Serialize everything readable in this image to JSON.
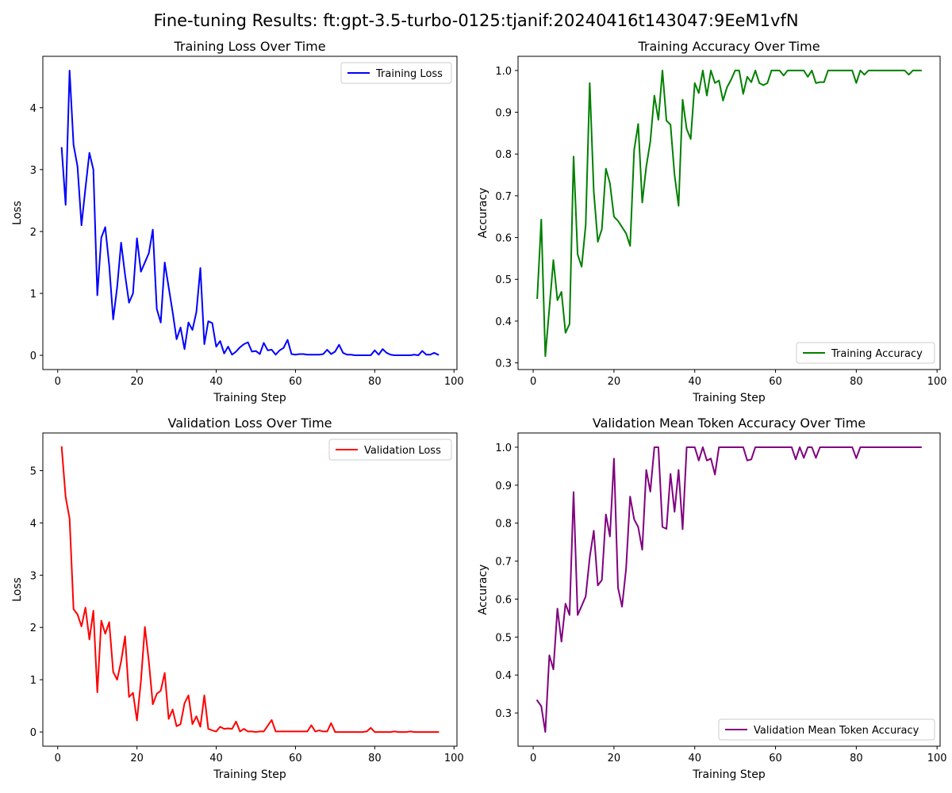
{
  "figure": {
    "title": "Fine-tuning Results: ft:gpt-3.5-turbo-0125:tjanif:20240416t143047:9EeM1vfN"
  },
  "chart_data": [
    {
      "type": "line",
      "title": "Training Loss Over Time",
      "xlabel": "Training Step",
      "ylabel": "Loss",
      "xlim": [
        -3.75,
        100.75
      ],
      "ylim": [
        -0.23,
        4.83
      ],
      "xticks": [
        0,
        20,
        40,
        60,
        80,
        100
      ],
      "yticks": [
        0,
        1,
        2,
        3,
        4
      ],
      "grid": false,
      "legend_position": "top-right",
      "series": [
        {
          "name": "Training Loss",
          "color": "#0000ff",
          "x": [
            1,
            2,
            3,
            4,
            5,
            6,
            7,
            8,
            9,
            10,
            11,
            12,
            13,
            14,
            15,
            16,
            17,
            18,
            19,
            20,
            21,
            22,
            23,
            24,
            25,
            26,
            27,
            28,
            29,
            30,
            31,
            32,
            33,
            34,
            35,
            36,
            37,
            38,
            39,
            40,
            41,
            42,
            43,
            44,
            45,
            46,
            47,
            48,
            49,
            50,
            51,
            52,
            53,
            54,
            55,
            56,
            57,
            58,
            59,
            60,
            61,
            62,
            63,
            64,
            65,
            66,
            67,
            68,
            69,
            70,
            71,
            72,
            73,
            74,
            75,
            76,
            77,
            78,
            79,
            80,
            81,
            82,
            83,
            84,
            85,
            86,
            87,
            88,
            89,
            90,
            91,
            92,
            93,
            94,
            95,
            96
          ],
          "values": [
            3.35,
            2.43,
            4.6,
            3.4,
            3.05,
            2.1,
            2.7,
            3.27,
            3.0,
            0.97,
            1.9,
            2.07,
            1.45,
            0.58,
            1.1,
            1.82,
            1.3,
            0.85,
            1.0,
            1.89,
            1.35,
            1.5,
            1.65,
            2.03,
            0.75,
            0.53,
            1.5,
            1.1,
            0.7,
            0.26,
            0.45,
            0.1,
            0.53,
            0.41,
            0.7,
            1.41,
            0.18,
            0.55,
            0.52,
            0.14,
            0.23,
            0.03,
            0.14,
            0.01,
            0.06,
            0.13,
            0.18,
            0.21,
            0.06,
            0.07,
            0.02,
            0.2,
            0.08,
            0.09,
            0.01,
            0.08,
            0.12,
            0.25,
            0.02,
            0.01,
            0.02,
            0.02,
            0.01,
            0.01,
            0.01,
            0.01,
            0.02,
            0.09,
            0.02,
            0.06,
            0.17,
            0.04,
            0.01,
            0.01,
            0.0,
            0.0,
            0.0,
            0.0,
            0.0,
            0.08,
            0.01,
            0.1,
            0.04,
            0.01,
            0.0,
            0.0,
            0.0,
            0.0,
            0.0,
            0.01,
            0.0,
            0.07,
            0.01,
            0.01,
            0.04,
            0.01
          ]
        }
      ]
    },
    {
      "type": "line",
      "title": "Training Accuracy Over Time",
      "xlabel": "Training Step",
      "ylabel": "Accuracy",
      "xlim": [
        -3.75,
        100.75
      ],
      "ylim": [
        0.284,
        1.034
      ],
      "xticks": [
        0,
        20,
        40,
        60,
        80,
        100
      ],
      "yticks": [
        0.3,
        0.4,
        0.5,
        0.6,
        0.7,
        0.8,
        0.9,
        1.0
      ],
      "grid": false,
      "legend_position": "bottom-right",
      "series": [
        {
          "name": "Training Accuracy",
          "color": "#008000",
          "x": [
            1,
            2,
            3,
            4,
            5,
            6,
            7,
            8,
            9,
            10,
            11,
            12,
            13,
            14,
            15,
            16,
            17,
            18,
            19,
            20,
            21,
            22,
            23,
            24,
            25,
            26,
            27,
            28,
            29,
            30,
            31,
            32,
            33,
            34,
            35,
            36,
            37,
            38,
            39,
            40,
            41,
            42,
            43,
            44,
            45,
            46,
            47,
            48,
            49,
            50,
            51,
            52,
            53,
            54,
            55,
            56,
            57,
            58,
            59,
            60,
            61,
            62,
            63,
            64,
            65,
            66,
            67,
            68,
            69,
            70,
            71,
            72,
            73,
            74,
            75,
            76,
            77,
            78,
            79,
            80,
            81,
            82,
            83,
            84,
            85,
            86,
            87,
            88,
            89,
            90,
            91,
            92,
            93,
            94,
            95,
            96
          ],
          "values": [
            0.455,
            0.643,
            0.316,
            0.43,
            0.546,
            0.45,
            0.47,
            0.372,
            0.393,
            0.794,
            0.56,
            0.53,
            0.63,
            0.97,
            0.71,
            0.59,
            0.62,
            0.765,
            0.73,
            0.65,
            0.64,
            0.625,
            0.61,
            0.58,
            0.81,
            0.872,
            0.684,
            0.77,
            0.83,
            0.94,
            0.882,
            1.0,
            0.88,
            0.87,
            0.75,
            0.676,
            0.93,
            0.86,
            0.836,
            0.97,
            0.946,
            1.0,
            0.94,
            1.0,
            0.97,
            0.976,
            0.928,
            0.96,
            0.978,
            1.0,
            1.0,
            0.944,
            0.985,
            0.972,
            1.0,
            0.97,
            0.965,
            0.97,
            1.0,
            1.0,
            1.0,
            0.988,
            1.0,
            1.0,
            1.0,
            1.0,
            1.0,
            0.985,
            1.0,
            0.97,
            0.972,
            0.972,
            1.0,
            1.0,
            1.0,
            1.0,
            1.0,
            1.0,
            1.0,
            0.97,
            1.0,
            0.99,
            1.0,
            1.0,
            1.0,
            1.0,
            1.0,
            1.0,
            1.0,
            1.0,
            1.0,
            1.0,
            0.99,
            1.0,
            1.0,
            1.0
          ]
        }
      ]
    },
    {
      "type": "line",
      "title": "Validation Loss Over Time",
      "xlabel": "Training Step",
      "ylabel": "Loss",
      "xlim": [
        -3.75,
        100.75
      ],
      "ylim": [
        -0.272,
        5.72
      ],
      "xticks": [
        0,
        20,
        40,
        60,
        80,
        100
      ],
      "yticks": [
        0,
        1,
        2,
        3,
        4,
        5
      ],
      "grid": false,
      "legend_position": "top-right",
      "series": [
        {
          "name": "Validation Loss",
          "color": "#ff0000",
          "x": [
            1,
            2,
            3,
            4,
            5,
            6,
            7,
            8,
            9,
            10,
            11,
            12,
            13,
            14,
            15,
            16,
            17,
            18,
            19,
            20,
            21,
            22,
            23,
            24,
            25,
            26,
            27,
            28,
            29,
            30,
            31,
            32,
            33,
            34,
            35,
            36,
            37,
            38,
            39,
            40,
            41,
            42,
            43,
            44,
            45,
            46,
            47,
            48,
            49,
            50,
            51,
            52,
            53,
            54,
            55,
            56,
            57,
            58,
            59,
            60,
            61,
            62,
            63,
            64,
            65,
            66,
            67,
            68,
            69,
            70,
            71,
            72,
            73,
            74,
            75,
            76,
            77,
            78,
            79,
            80,
            81,
            82,
            83,
            84,
            85,
            86,
            87,
            88,
            89,
            90,
            91,
            92,
            93,
            94,
            95,
            96
          ],
          "values": [
            5.45,
            4.5,
            4.08,
            2.35,
            2.25,
            2.02,
            2.38,
            1.77,
            2.32,
            0.76,
            2.13,
            1.88,
            2.1,
            1.15,
            1.0,
            1.35,
            1.83,
            0.67,
            0.75,
            0.22,
            0.97,
            2.01,
            1.35,
            0.53,
            0.73,
            0.79,
            1.13,
            0.25,
            0.43,
            0.11,
            0.15,
            0.55,
            0.7,
            0.15,
            0.3,
            0.1,
            0.7,
            0.06,
            0.03,
            0.01,
            0.1,
            0.06,
            0.07,
            0.06,
            0.2,
            0.01,
            0.06,
            0.01,
            0.01,
            0.0,
            0.01,
            0.01,
            0.12,
            0.23,
            0.01,
            0.01,
            0.01,
            0.01,
            0.01,
            0.01,
            0.01,
            0.01,
            0.01,
            0.13,
            0.01,
            0.03,
            0.01,
            0.01,
            0.17,
            0.0,
            0.0,
            0.0,
            0.0,
            0.0,
            0.0,
            0.0,
            0.0,
            0.01,
            0.08,
            0.0,
            0.0,
            0.0,
            0.0,
            0.0,
            0.01,
            0.0,
            0.0,
            0.0,
            0.01,
            0.0,
            0.0,
            0.0,
            0.0,
            0.0,
            0.0,
            0.0
          ]
        }
      ]
    },
    {
      "type": "line",
      "title": "Validation Mean Token Accuracy Over Time",
      "xlabel": "Training Step",
      "ylabel": "Accuracy",
      "xlim": [
        -3.75,
        100.75
      ],
      "ylim": [
        0.2125,
        1.0375
      ],
      "xticks": [
        0,
        20,
        40,
        60,
        80,
        100
      ],
      "yticks": [
        0.3,
        0.4,
        0.5,
        0.6,
        0.7,
        0.8,
        0.9,
        1.0
      ],
      "grid": false,
      "legend_position": "bottom-right",
      "series": [
        {
          "name": "Validation Mean Token Accuracy",
          "color": "#800080",
          "x": [
            1,
            2,
            3,
            4,
            5,
            6,
            7,
            8,
            9,
            10,
            11,
            12,
            13,
            14,
            15,
            16,
            17,
            18,
            19,
            20,
            21,
            22,
            23,
            24,
            25,
            26,
            27,
            28,
            29,
            30,
            31,
            32,
            33,
            34,
            35,
            36,
            37,
            38,
            39,
            40,
            41,
            42,
            43,
            44,
            45,
            46,
            47,
            48,
            49,
            50,
            51,
            52,
            53,
            54,
            55,
            56,
            57,
            58,
            59,
            60,
            61,
            62,
            63,
            64,
            65,
            66,
            67,
            68,
            69,
            70,
            71,
            72,
            73,
            74,
            75,
            76,
            77,
            78,
            79,
            80,
            81,
            82,
            83,
            84,
            85,
            86,
            87,
            88,
            89,
            90,
            91,
            92,
            93,
            94,
            95,
            96
          ],
          "values": [
            0.333,
            0.318,
            0.25,
            0.452,
            0.415,
            0.575,
            0.488,
            0.588,
            0.558,
            0.882,
            0.558,
            0.582,
            0.607,
            0.71,
            0.78,
            0.636,
            0.65,
            0.823,
            0.765,
            0.97,
            0.63,
            0.58,
            0.68,
            0.87,
            0.81,
            0.79,
            0.73,
            0.94,
            0.883,
            1.0,
            1.0,
            0.79,
            0.785,
            0.93,
            0.83,
            0.94,
            0.784,
            1.0,
            1.0,
            1.0,
            0.965,
            1.0,
            0.965,
            0.97,
            0.928,
            1.0,
            1.0,
            1.0,
            1.0,
            1.0,
            1.0,
            1.0,
            0.965,
            0.968,
            1.0,
            1.0,
            1.0,
            1.0,
            1.0,
            1.0,
            1.0,
            1.0,
            1.0,
            1.0,
            0.968,
            1.0,
            0.972,
            1.0,
            1.0,
            0.972,
            1.0,
            1.0,
            1.0,
            1.0,
            1.0,
            1.0,
            1.0,
            1.0,
            1.0,
            0.971,
            1.0,
            1.0,
            1.0,
            1.0,
            1.0,
            1.0,
            1.0,
            1.0,
            1.0,
            1.0,
            1.0,
            1.0,
            1.0,
            1.0,
            1.0,
            1.0
          ]
        }
      ]
    }
  ]
}
